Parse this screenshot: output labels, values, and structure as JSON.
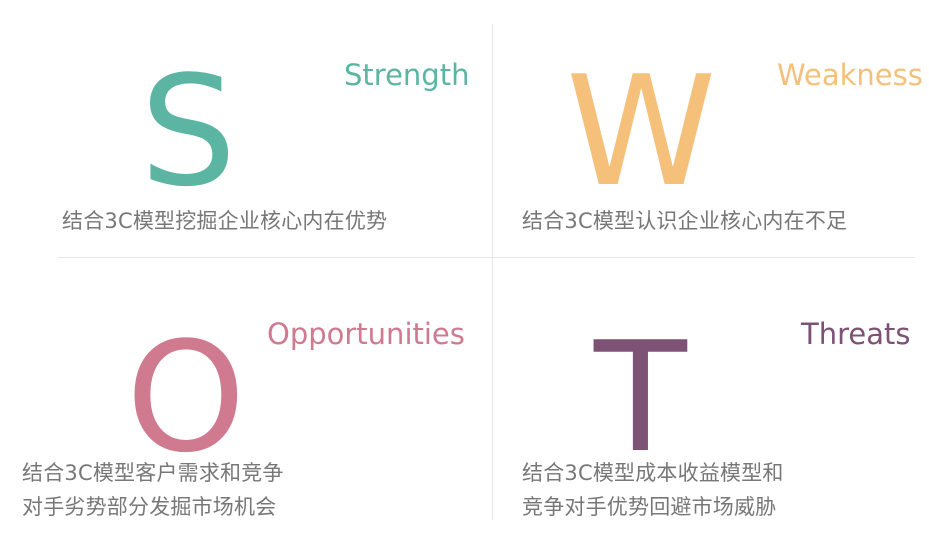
{
  "swot": {
    "strength": {
      "letter": "S",
      "label": "Strength",
      "color": "#5bb5a2",
      "desc_lines": [
        "结合3C模型挖掘企业核心内在优势"
      ]
    },
    "weakness": {
      "letter": "W",
      "label": "Weakness",
      "color": "#f5c07a",
      "desc_lines": [
        "结合3C模型认识企业核心内在不足"
      ]
    },
    "opportunities": {
      "letter": "O",
      "label": "Opportunities",
      "color": "#d07a90",
      "desc_lines": [
        "结合3C模型客户需求和竞争",
        "对手劣势部分发掘市场机会"
      ]
    },
    "threats": {
      "letter": "T",
      "label": "Threats",
      "color": "#7d5275",
      "desc_lines": [
        "结合3C模型成本收益模型和",
        "竞争对手优势回避市场威胁"
      ]
    }
  }
}
